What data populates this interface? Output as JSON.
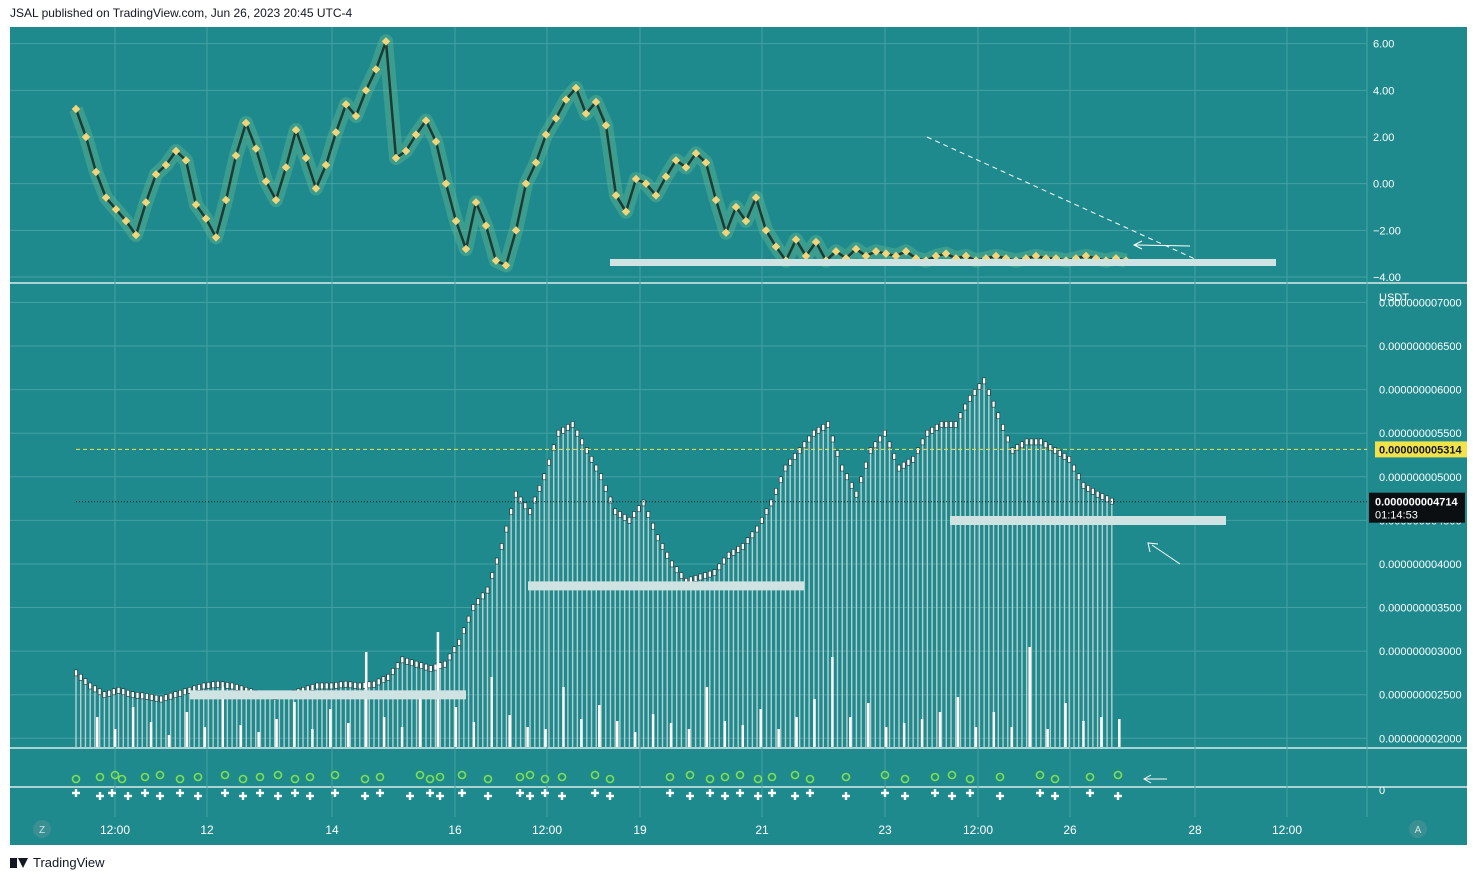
{
  "header": {
    "publisher": "JSAL published on TradingView.com, Jun 26, 2023 20:45 UTC-4"
  },
  "footer": {
    "brand": "TradingView"
  },
  "colors": {
    "background": "#1f8a8e",
    "oscillator_line": "#1e3a32",
    "oscillator_markers": "#f2d57a",
    "price_bars": "#b8cfcf",
    "volume": "#ffffff",
    "dashed_level": "#f2e24a",
    "support_band": "#cfe3e3",
    "dot_green": "#7ee04a",
    "dot_white": "#ffffff"
  },
  "chart_data": [
    {
      "type": "line",
      "pane": "oscillator",
      "y_ticks": [
        "6.00",
        "4.00",
        "2.00",
        "0.00",
        "−2.00",
        "−4.00"
      ],
      "ylim": [
        -4.0,
        6.2
      ],
      "x": [
        0,
        1,
        2,
        3,
        4,
        5,
        6,
        7,
        8,
        9,
        10,
        11,
        12,
        13,
        14,
        15,
        16,
        17,
        18,
        19,
        20,
        21,
        22,
        23,
        24,
        25,
        26,
        27,
        28,
        29,
        30,
        31,
        32,
        33,
        34,
        35,
        36,
        37,
        38,
        39,
        40,
        41,
        42,
        43,
        44,
        45,
        46,
        47,
        48,
        49,
        50,
        51,
        52,
        53,
        54,
        55,
        56,
        57,
        58,
        59,
        60,
        61,
        62,
        63,
        64,
        65,
        66,
        67,
        68,
        69,
        70,
        71,
        72,
        73,
        74,
        75,
        76,
        77,
        78,
        79,
        80,
        81,
        82,
        83,
        84,
        85,
        86,
        87,
        88,
        89,
        90,
        91,
        92,
        93,
        94,
        95,
        96,
        97,
        98,
        99,
        100,
        101,
        102,
        103,
        104,
        105
      ],
      "values": [
        3.2,
        2.0,
        0.5,
        -0.6,
        -1.1,
        -1.6,
        -2.2,
        -0.8,
        0.4,
        0.8,
        1.4,
        1.0,
        -0.9,
        -1.5,
        -2.3,
        -0.7,
        1.2,
        2.6,
        1.5,
        0.1,
        -0.7,
        0.7,
        2.3,
        1.1,
        -0.2,
        0.8,
        2.2,
        3.4,
        2.9,
        4.0,
        4.9,
        6.1,
        1.1,
        1.4,
        2.1,
        2.7,
        1.8,
        0.0,
        -1.6,
        -2.8,
        -0.8,
        -1.8,
        -3.3,
        -3.5,
        -2.0,
        0.0,
        0.9,
        2.1,
        2.8,
        3.6,
        4.1,
        3.0,
        3.5,
        2.5,
        -0.5,
        -1.2,
        0.2,
        0.0,
        -0.5,
        0.3,
        1.0,
        0.7,
        1.3,
        0.9,
        -0.7,
        -2.1,
        -1.0,
        -1.6,
        -0.6,
        -2.0,
        -2.7,
        -3.3,
        -2.4,
        -3.1,
        -2.5,
        -3.3,
        -2.9,
        -3.2,
        -2.8,
        -3.1,
        -2.9,
        -3.0,
        -3.1,
        -2.9,
        -3.2,
        -3.3,
        -3.1,
        -3.0,
        -3.2,
        -3.1,
        -3.3,
        -3.2,
        -3.1,
        -3.2,
        -3.3,
        -3.2,
        -3.1,
        -3.2,
        -3.2,
        -3.3,
        -3.2,
        -3.1,
        -3.2,
        -3.3,
        -3.2,
        -3.3
      ]
    },
    {
      "type": "bar",
      "pane": "price",
      "y_axis_title": "USDT",
      "y_ticks": [
        "0.000000007000",
        "0.000000006500",
        "0.000000006000",
        "0.000000005500",
        "0.000000005000",
        "0.000000004500",
        "0.000000004000",
        "0.000000003500",
        "0.000000003000",
        "0.000000002500",
        "0.000000002000"
      ],
      "ylim": [
        1.9e-09,
        7.2e-09
      ],
      "close_series_e9": [
        2.75,
        2.6,
        2.5,
        2.55,
        2.5,
        2.48,
        2.45,
        2.5,
        2.55,
        2.6,
        2.62,
        2.6,
        2.55,
        2.5,
        2.48,
        2.5,
        2.55,
        2.6,
        2.6,
        2.62,
        2.6,
        2.62,
        2.7,
        2.9,
        2.85,
        2.8,
        2.85,
        3.1,
        3.5,
        3.7,
        4.2,
        4.8,
        4.6,
        5.0,
        5.5,
        5.6,
        5.3,
        5.0,
        4.6,
        4.5,
        4.7,
        4.3,
        4.0,
        3.8,
        3.85,
        3.9,
        4.1,
        4.2,
        4.4,
        4.7,
        5.1,
        5.3,
        5.5,
        5.6,
        5.1,
        4.8,
        5.3,
        5.5,
        5.1,
        5.2,
        5.5,
        5.6,
        5.6,
        5.9,
        6.1,
        5.7,
        5.3,
        5.4,
        5.4,
        5.3,
        5.2,
        4.9,
        4.8,
        4.72
      ],
      "labels": {
        "level_label": "0.000000005314",
        "last_price": "0.000000004714",
        "countdown": "01:14:53"
      }
    },
    {
      "type": "scatter",
      "pane": "signals",
      "zero_label": "0"
    }
  ],
  "x_axis": {
    "ticks": [
      "12:00",
      "12",
      "14",
      "16",
      "12:00",
      "19",
      "21",
      "23",
      "12:00",
      "26",
      "28",
      "12:00"
    ],
    "left_badge": "Z",
    "right_badge": "A"
  }
}
